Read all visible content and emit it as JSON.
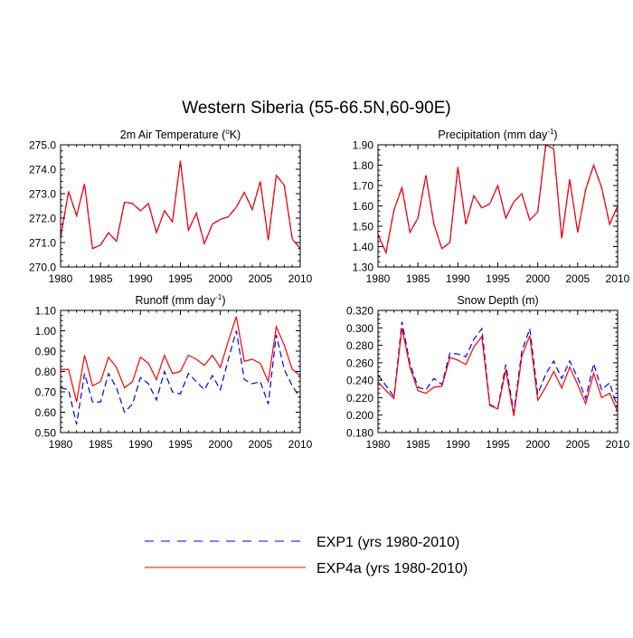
{
  "title": "Western Siberia (55-66.5N,60-90E)",
  "legend": [
    {
      "name": "EXP1 (yrs 1980-2010)",
      "color": "#0000ff",
      "dash": "dashed"
    },
    {
      "name": "EXP4a (yrs 1980-2010)",
      "color": "#ff0000",
      "dash": "solid"
    }
  ],
  "chart_data": [
    {
      "type": "line",
      "title": "2m Air Temperature (",
      "title_sup": "o",
      "title_tail": "K)",
      "xlim": [
        1980,
        2010
      ],
      "xticks": [
        1980,
        1985,
        1990,
        1995,
        2000,
        2005,
        2010
      ],
      "ylim": [
        270.0,
        275.0
      ],
      "yticks": [
        "270.0",
        "271.0",
        "272.0",
        "273.0",
        "274.0",
        "275.0"
      ],
      "x": [
        1980,
        1981,
        1982,
        1983,
        1984,
        1985,
        1986,
        1987,
        1988,
        1989,
        1990,
        1991,
        1992,
        1993,
        1994,
        1995,
        1996,
        1997,
        1998,
        1999,
        2000,
        2001,
        2002,
        2003,
        2004,
        2005,
        2006,
        2007,
        2008,
        2009,
        2010
      ],
      "series": [
        {
          "name": "EXP1 (yrs 1980-2010)",
          "values": [
            271.2,
            273.1,
            272.1,
            273.4,
            270.75,
            270.9,
            271.4,
            271.05,
            272.65,
            272.6,
            272.3,
            272.6,
            271.4,
            272.3,
            271.85,
            274.35,
            271.5,
            272.2,
            270.95,
            271.75,
            271.95,
            272.05,
            272.45,
            273.05,
            272.35,
            273.5,
            271.1,
            273.75,
            273.35,
            271.15,
            270.75
          ]
        },
        {
          "name": "EXP4a (yrs 1980-2010)",
          "values": [
            271.2,
            273.1,
            272.1,
            273.4,
            270.75,
            270.9,
            271.4,
            271.05,
            272.65,
            272.6,
            272.3,
            272.6,
            271.4,
            272.3,
            271.85,
            274.35,
            271.5,
            272.2,
            270.95,
            271.75,
            271.95,
            272.05,
            272.45,
            273.05,
            272.35,
            273.5,
            271.1,
            273.75,
            273.35,
            271.15,
            270.75
          ]
        }
      ]
    },
    {
      "type": "line",
      "title": "Precipitation (mm day",
      "title_sup": "-1",
      "title_tail": ")",
      "xlim": [
        1980,
        2010
      ],
      "xticks": [
        1980,
        1985,
        1990,
        1995,
        2000,
        2005,
        2010
      ],
      "ylim": [
        1.3,
        1.9
      ],
      "yticks": [
        "1.30",
        "1.40",
        "1.50",
        "1.60",
        "1.70",
        "1.80",
        "1.90"
      ],
      "x": [
        1980,
        1981,
        1982,
        1983,
        1984,
        1985,
        1986,
        1987,
        1988,
        1989,
        1990,
        1991,
        1992,
        1993,
        1994,
        1995,
        1996,
        1997,
        1998,
        1999,
        2000,
        2001,
        2002,
        2003,
        2004,
        2005,
        2006,
        2007,
        2008,
        2009,
        2010
      ],
      "series": [
        {
          "name": "EXP1 (yrs 1980-2010)",
          "values": [
            1.46,
            1.37,
            1.58,
            1.69,
            1.47,
            1.54,
            1.75,
            1.51,
            1.39,
            1.42,
            1.79,
            1.51,
            1.65,
            1.59,
            1.61,
            1.7,
            1.54,
            1.62,
            1.66,
            1.53,
            1.57,
            1.9,
            1.88,
            1.44,
            1.73,
            1.47,
            1.68,
            1.8,
            1.69,
            1.51,
            1.6
          ]
        },
        {
          "name": "EXP4a (yrs 1980-2010)",
          "values": [
            1.46,
            1.37,
            1.58,
            1.69,
            1.47,
            1.54,
            1.75,
            1.51,
            1.39,
            1.42,
            1.79,
            1.51,
            1.65,
            1.59,
            1.61,
            1.7,
            1.54,
            1.62,
            1.66,
            1.53,
            1.57,
            1.9,
            1.88,
            1.44,
            1.73,
            1.47,
            1.68,
            1.8,
            1.69,
            1.51,
            1.6
          ]
        }
      ]
    },
    {
      "type": "line",
      "title": "Runoff (mm day",
      "title_sup": "-1",
      "title_tail": ")",
      "xlim": [
        1980,
        2010
      ],
      "xticks": [
        1980,
        1985,
        1990,
        1995,
        2000,
        2005,
        2010
      ],
      "ylim": [
        0.5,
        1.1
      ],
      "yticks": [
        "0.50",
        "0.60",
        "0.70",
        "0.80",
        "0.90",
        "1.00",
        "1.10"
      ],
      "x": [
        1980,
        1981,
        1982,
        1983,
        1984,
        1985,
        1986,
        1987,
        1988,
        1989,
        1990,
        1991,
        1992,
        1993,
        1994,
        1995,
        1996,
        1997,
        1998,
        1999,
        2000,
        2001,
        2002,
        2003,
        2004,
        2005,
        2006,
        2007,
        2008,
        2009,
        2010
      ],
      "series": [
        {
          "name": "EXP1 (yrs 1980-2010)",
          "values": [
            0.72,
            0.71,
            0.54,
            0.79,
            0.65,
            0.65,
            0.79,
            0.72,
            0.6,
            0.64,
            0.77,
            0.74,
            0.66,
            0.8,
            0.7,
            0.69,
            0.79,
            0.75,
            0.71,
            0.78,
            0.71,
            0.86,
            1.0,
            0.76,
            0.74,
            0.75,
            0.64,
            0.98,
            0.81,
            0.73,
            0.67
          ]
        },
        {
          "name": "EXP4a (yrs 1980-2010)",
          "values": [
            0.81,
            0.81,
            0.65,
            0.88,
            0.73,
            0.75,
            0.87,
            0.82,
            0.72,
            0.75,
            0.87,
            0.84,
            0.76,
            0.88,
            0.79,
            0.8,
            0.88,
            0.86,
            0.83,
            0.88,
            0.82,
            0.95,
            1.07,
            0.85,
            0.86,
            0.84,
            0.75,
            1.02,
            0.93,
            0.81,
            0.78
          ]
        }
      ]
    },
    {
      "type": "line",
      "title": "Snow Depth (m)",
      "title_sup": "",
      "title_tail": "",
      "xlim": [
        1980,
        2010
      ],
      "xticks": [
        1980,
        1985,
        1990,
        1995,
        2000,
        2005,
        2010
      ],
      "ylim": [
        0.18,
        0.32
      ],
      "yticks": [
        "0.180",
        "0.200",
        "0.220",
        "0.240",
        "0.260",
        "0.280",
        "0.300",
        "0.320"
      ],
      "x": [
        1980,
        1981,
        1982,
        1983,
        1984,
        1985,
        1986,
        1987,
        1988,
        1989,
        1990,
        1991,
        1992,
        1993,
        1994,
        1995,
        1996,
        1997,
        1998,
        1999,
        2000,
        2001,
        2002,
        2003,
        2004,
        2005,
        2006,
        2007,
        2008,
        2009,
        2010
      ],
      "series": [
        {
          "name": "EXP1 (yrs 1980-2010)",
          "values": [
            0.246,
            0.234,
            0.221,
            0.307,
            0.259,
            0.232,
            0.229,
            0.242,
            0.235,
            0.271,
            0.27,
            0.267,
            0.287,
            0.299,
            0.212,
            0.208,
            0.258,
            0.203,
            0.273,
            0.299,
            0.224,
            0.247,
            0.262,
            0.242,
            0.262,
            0.243,
            0.219,
            0.259,
            0.229,
            0.237,
            0.208
          ]
        },
        {
          "name": "EXP4a (yrs 1980-2010)",
          "values": [
            0.238,
            0.228,
            0.219,
            0.3,
            0.255,
            0.228,
            0.225,
            0.232,
            0.233,
            0.266,
            0.263,
            0.258,
            0.278,
            0.29,
            0.211,
            0.207,
            0.252,
            0.199,
            0.267,
            0.291,
            0.217,
            0.232,
            0.25,
            0.231,
            0.255,
            0.235,
            0.213,
            0.248,
            0.22,
            0.225,
            0.204
          ]
        }
      ]
    }
  ]
}
